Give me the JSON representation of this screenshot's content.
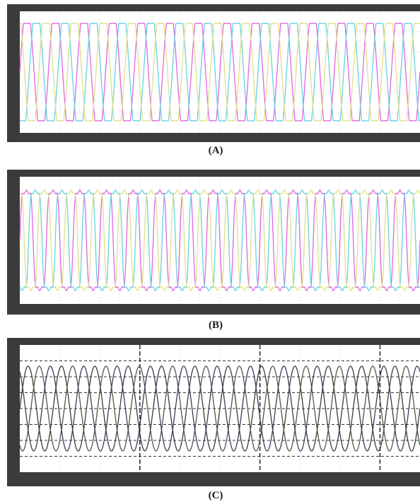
{
  "chart_data": [
    {
      "type": "line",
      "panel_label": "(A)",
      "waveform": "clipped-sinusoid",
      "cycles_shown": 14,
      "series": [
        {
          "phase_deg": 0,
          "color": "#e066e0"
        },
        {
          "phase_deg": 120,
          "color": "#66d3e0"
        },
        {
          "phase_deg": 240,
          "color": "#e0e08a"
        }
      ],
      "ylim": [
        -1.25,
        1.25
      ],
      "grid": true,
      "background": "#ffffff",
      "frame_color": "#3b3b3b"
    },
    {
      "type": "line",
      "panel_label": "(B)",
      "waveform": "distorted-sinusoid",
      "cycles_shown": 15,
      "series": [
        {
          "phase_deg": 0,
          "color": "#e066e0"
        },
        {
          "phase_deg": 120,
          "color": "#66d3e0"
        },
        {
          "phase_deg": 240,
          "color": "#e0e08a"
        }
      ],
      "ylim": [
        -1.25,
        1.25
      ],
      "grid": true,
      "background": "#ffffff",
      "frame_color": "#3b3b3b"
    },
    {
      "type": "line",
      "panel_label": "(C)",
      "waveform": "sinusoid",
      "cycles_shown": 12,
      "series": [
        {
          "phase_deg": 0,
          "color": "#3a3a3a"
        },
        {
          "phase_deg": 120,
          "color": "#4a5a4a"
        },
        {
          "phase_deg": 240,
          "color": "#3a3a5a"
        }
      ],
      "ylim": [
        -1.5,
        1.5
      ],
      "grid": true,
      "background": "#ffffff",
      "frame_color": "#3b3b3b"
    }
  ]
}
